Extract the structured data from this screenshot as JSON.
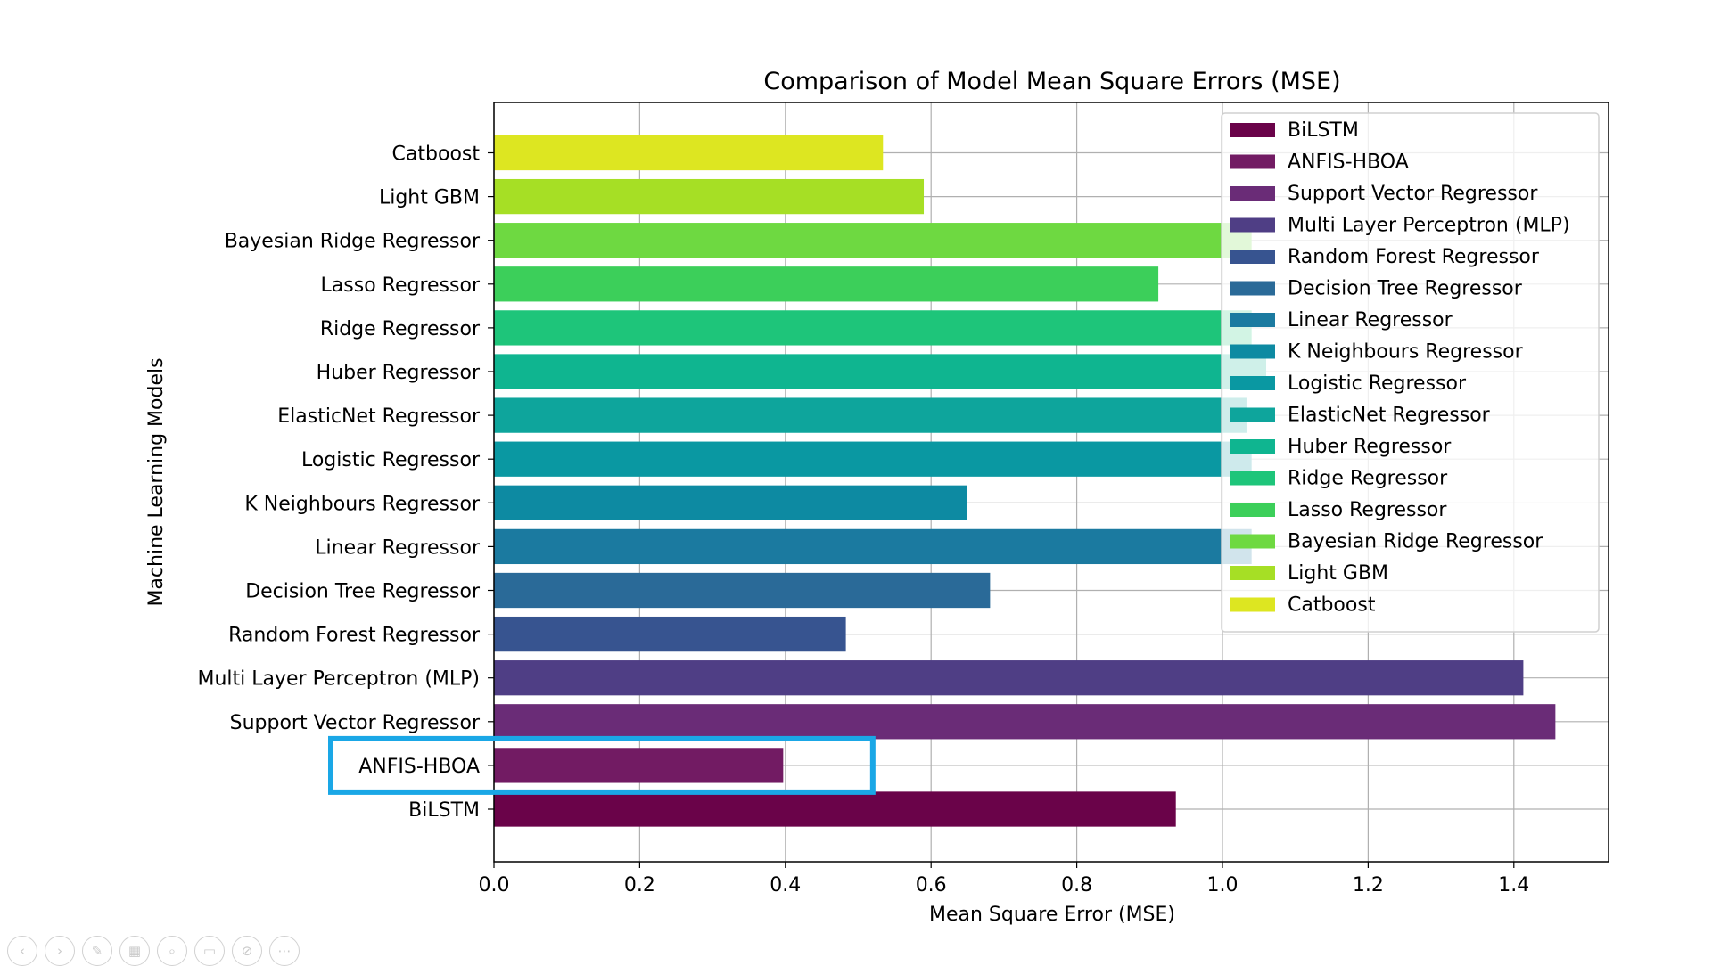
{
  "colors": {
    "highlight": "#1aa7e6",
    "grid": "#b0b0b0",
    "axis": "#000000",
    "legend_border": "#d0d0d0"
  },
  "chart_data": {
    "type": "bar",
    "orientation": "horizontal",
    "title": "Comparison of Model Mean Square Errors (MSE)",
    "xlabel": "Mean Square Error (MSE)",
    "ylabel": "Machine Learning Models",
    "xlim": [
      0.0,
      1.53
    ],
    "xticks": [
      "0.0",
      "0.2",
      "0.4",
      "0.6",
      "0.8",
      "1.0",
      "1.2",
      "1.4"
    ],
    "grid": true,
    "legend_position": "top-right",
    "categories": [
      "BiLSTM",
      "ANFIS-HBOA",
      "Support Vector Regressor",
      "Multi Layer Perceptron (MLP)",
      "Random Forest Regressor",
      "Decision Tree Regressor",
      "Linear Regressor",
      "K Neighbours Regressor",
      "Logistic Regressor",
      "ElasticNet Regressor",
      "Huber Regressor",
      "Ridge Regressor",
      "Lasso Regressor",
      "Bayesian Ridge Regressor",
      "Light GBM",
      "Catboost"
    ],
    "values": [
      0.936,
      0.397,
      1.457,
      1.413,
      0.483,
      0.681,
      1.04,
      0.649,
      1.04,
      1.033,
      1.06,
      1.04,
      0.912,
      1.04,
      0.59,
      0.534
    ],
    "bar_colors": [
      "#6a0349",
      "#721b63",
      "#6a2c77",
      "#4f3e85",
      "#375490",
      "#2a6a98",
      "#1b7aa0",
      "#0d8aa2",
      "#0a98a2",
      "#0ea59c",
      "#0fb590",
      "#1ec57a",
      "#3ccf5a",
      "#6ed941",
      "#a6df25",
      "#dde621"
    ],
    "highlighted": [
      "ANFIS-HBOA"
    ]
  },
  "controls": [
    "previous-icon",
    "next-icon",
    "pen-icon",
    "slides-icon",
    "zoom-icon",
    "subtitles-icon",
    "camera-off-icon",
    "more-icon"
  ],
  "control_glyphs": [
    "‹",
    "›",
    "✎",
    "▦",
    "⌕",
    "▭",
    "⊘",
    "⋯"
  ]
}
